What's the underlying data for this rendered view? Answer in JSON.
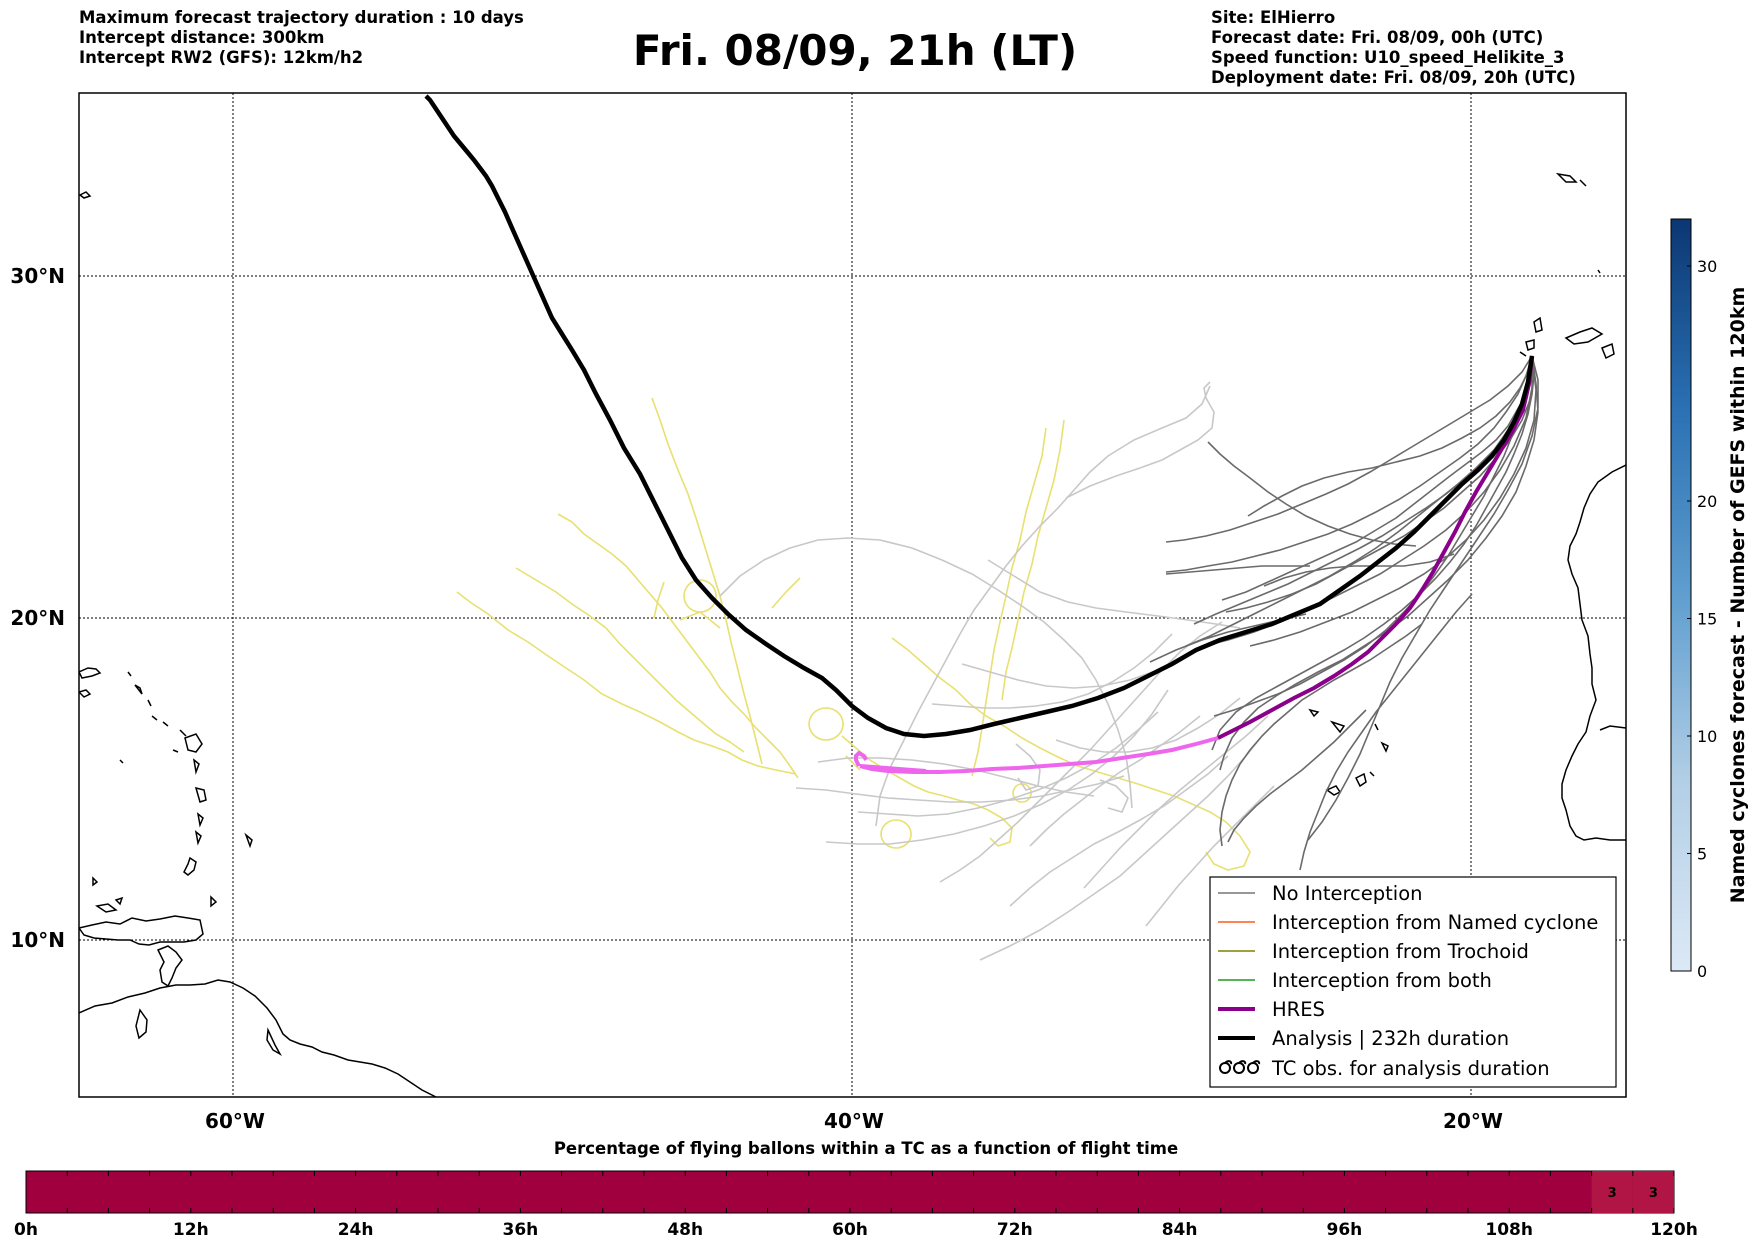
{
  "header_left": [
    "Maximum forecast trajectory duration : 10 days",
    "Intercept distance: 300km",
    "Intercept RW2 (GFS):  12km/h2"
  ],
  "title": "Fri. 08/09, 21h (LT)",
  "header_right": [
    "Site: ElHierro",
    "Forecast date: Fri. 08/09, 00h (UTC)",
    "Speed function: U10_speed_Helikite_3",
    "Deployment date: Fri. 08/09, 20h (UTC)"
  ],
  "map": {
    "lat_ticks": [
      "30°N",
      "20°N",
      "10°N"
    ],
    "lon_ticks": [
      "60°W",
      "40°W",
      "20°W"
    ],
    "grid": true,
    "projection_extent": {
      "lon": [
        -65,
        -15
      ],
      "lat": [
        4.6,
        33.9
      ]
    }
  },
  "legend": {
    "placement": "lower-right",
    "items": [
      {
        "label": "No Interception",
        "color": "#777777",
        "style": "thin"
      },
      {
        "label": "Interception from Named cyclone",
        "color": "#ff5a1a",
        "style": "thin"
      },
      {
        "label": "Interception from Trochoid",
        "color": "#808000",
        "style": "thin"
      },
      {
        "label": "Interception from both",
        "color": "#1f9a1f",
        "style": "thin"
      },
      {
        "label": "HRES",
        "color": "#8b008b",
        "style": "thick"
      },
      {
        "label": "Analysis | 232h duration",
        "color": "#000000",
        "style": "thick"
      },
      {
        "label": "TC obs. for analysis duration",
        "color": "#000000",
        "style": "cyclone-symbol"
      }
    ]
  },
  "colorbar": {
    "label": "Named cyclones forecast - Number of GEFS within 120km",
    "ticks": [
      0,
      5,
      10,
      15,
      20,
      30
    ],
    "range": [
      0,
      32
    ]
  },
  "flight_bar": {
    "title": "Percentage of flying ballons within a TC as a function of flight time",
    "ticks": [
      "0h",
      "12h",
      "24h",
      "36h",
      "48h",
      "60h",
      "72h",
      "84h",
      "96h",
      "108h",
      "120h"
    ],
    "segment_hours": 3,
    "base_color": "#a0003d",
    "highlight_color": "#b01545",
    "highlights": [
      {
        "from_h": 114,
        "to_h": 117,
        "label": "3"
      },
      {
        "from_h": 117,
        "to_h": 120,
        "label": "3"
      }
    ]
  },
  "chart_data": {
    "type": "map-trajectories",
    "colors": {
      "analysis": "#000000",
      "hres_forecast": "#8b008b",
      "hres_observed": "#ee66ee",
      "gefs_intercept": "#666666",
      "gefs_far": "#c8c8c8",
      "tc_tracks": "#e8e070"
    },
    "analysis_track": {
      "lon": [
        -16.8,
        -17.3,
        -18.0,
        -18.8,
        -19.8,
        -21.0,
        -22.4,
        -24.0,
        -25.5,
        -27.0,
        -28.5,
        -30.0,
        -31.5,
        -33.0,
        -34.5,
        -36.0,
        -37.0,
        -38.0,
        -39.0,
        -40.5,
        -42.0,
        -43.5,
        -44.8,
        -46.3,
        -47.6,
        -48.7,
        -49.9
      ],
      "lat": [
        27.2,
        25.6,
        24.5,
        23.3,
        22.3,
        21.0,
        20.3,
        19.6,
        19.0,
        18.3,
        17.6,
        17.2,
        16.9,
        16.6,
        16.4,
        16.4,
        16.8,
        17.4,
        17.9,
        18.9,
        20.0,
        21.8,
        23.4,
        25.2,
        26.4,
        27.1,
        27.7
      ]
    },
    "hres_track": {
      "lon": [
        -16.8,
        -17.3,
        -18.0,
        -18.7,
        -19.5,
        -20.4,
        -21.5,
        -22.8,
        -24.2,
        -25.6,
        -27.0,
        -28.5,
        -30.0,
        -31.5,
        -33.0,
        -34.5,
        -36.0,
        -37.0,
        -38.2,
        -38.6
      ],
      "lat": [
        27.2,
        25.6,
        24.4,
        23.0,
        21.5,
        20.2,
        19.1,
        18.2,
        17.5,
        16.9,
        16.3,
        15.9,
        15.6,
        15.4,
        15.35,
        15.3,
        15.3,
        15.45,
        15.55,
        15.8
      ]
    },
    "gefs_member_count": 30
  }
}
